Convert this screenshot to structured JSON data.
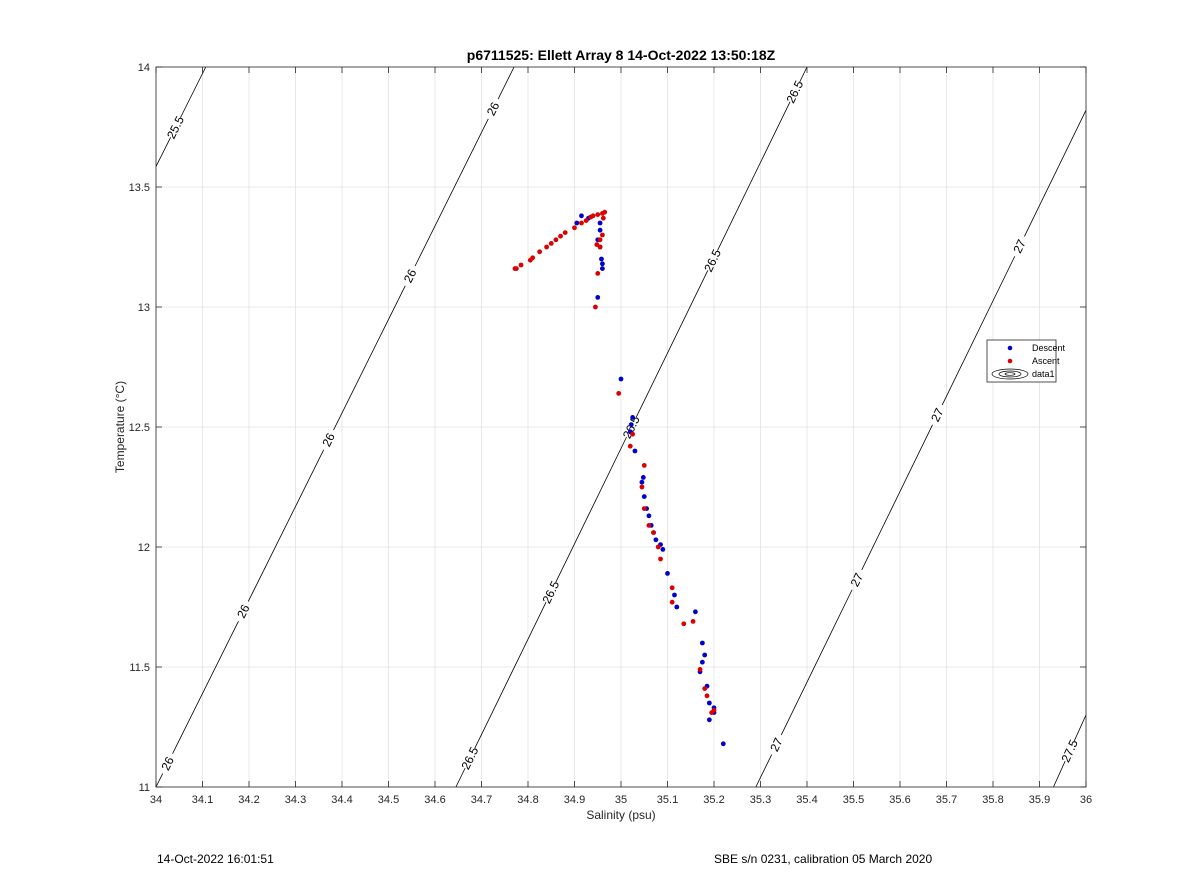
{
  "chart_data": {
    "type": "scatter",
    "title": "p6711525: Ellett Array 8 14-Oct-2022 13:50:18Z",
    "xlabel": "Salinity (psu)",
    "ylabel": "Temperature (°C)",
    "xlim": [
      34,
      36
    ],
    "ylim": [
      11,
      14
    ],
    "xticks": [
      "34",
      "34.1",
      "34.2",
      "34.3",
      "34.4",
      "34.5",
      "34.6",
      "34.7",
      "34.8",
      "34.9",
      "35",
      "35.1",
      "35.2",
      "35.3",
      "35.4",
      "35.5",
      "35.6",
      "35.7",
      "35.8",
      "35.9",
      "36"
    ],
    "yticks": [
      "11",
      "11.5",
      "12",
      "12.5",
      "13",
      "13.5",
      "14"
    ],
    "grid": true,
    "legend_position": "right",
    "legend": [
      "Descent",
      "Ascent",
      "data1"
    ],
    "series": [
      {
        "name": "Descent",
        "color": "#0000cc",
        "points": [
          [
            34.915,
            13.38
          ],
          [
            34.905,
            13.35
          ],
          [
            34.93,
            13.37
          ],
          [
            34.955,
            13.35
          ],
          [
            34.955,
            13.32
          ],
          [
            34.95,
            13.28
          ],
          [
            34.955,
            13.25
          ],
          [
            34.958,
            13.2
          ],
          [
            34.96,
            13.18
          ],
          [
            34.96,
            13.16
          ],
          [
            34.95,
            13.04
          ],
          [
            35.0,
            12.7
          ],
          [
            35.025,
            12.54
          ],
          [
            35.022,
            12.51
          ],
          [
            35.02,
            12.48
          ],
          [
            35.03,
            12.4
          ],
          [
            35.048,
            12.29
          ],
          [
            35.045,
            12.27
          ],
          [
            35.05,
            12.21
          ],
          [
            35.055,
            12.16
          ],
          [
            35.06,
            12.13
          ],
          [
            35.065,
            12.09
          ],
          [
            35.07,
            12.06
          ],
          [
            35.075,
            12.03
          ],
          [
            35.085,
            12.01
          ],
          [
            35.09,
            11.99
          ],
          [
            35.1,
            11.89
          ],
          [
            35.115,
            11.8
          ],
          [
            35.12,
            11.75
          ],
          [
            35.16,
            11.73
          ],
          [
            35.175,
            11.6
          ],
          [
            35.18,
            11.55
          ],
          [
            35.175,
            11.52
          ],
          [
            35.17,
            11.48
          ],
          [
            35.185,
            11.42
          ],
          [
            35.19,
            11.35
          ],
          [
            35.2,
            11.33
          ],
          [
            35.19,
            11.28
          ],
          [
            35.2,
            11.31
          ],
          [
            35.22,
            11.18
          ]
        ]
      },
      {
        "name": "Ascent",
        "color": "#dd0000",
        "points": [
          [
            34.772,
            13.16
          ],
          [
            34.775,
            13.16
          ],
          [
            34.785,
            13.175
          ],
          [
            34.805,
            13.195
          ],
          [
            34.81,
            13.205
          ],
          [
            34.825,
            13.23
          ],
          [
            34.84,
            13.25
          ],
          [
            34.85,
            13.265
          ],
          [
            34.86,
            13.28
          ],
          [
            34.87,
            13.295
          ],
          [
            34.88,
            13.31
          ],
          [
            34.9,
            13.33
          ],
          [
            34.915,
            13.35
          ],
          [
            34.925,
            13.36
          ],
          [
            34.935,
            13.375
          ],
          [
            34.94,
            13.38
          ],
          [
            34.95,
            13.385
          ],
          [
            34.96,
            13.39
          ],
          [
            34.965,
            13.395
          ],
          [
            34.962,
            13.37
          ],
          [
            34.96,
            13.3
          ],
          [
            34.955,
            13.28
          ],
          [
            34.948,
            13.26
          ],
          [
            34.955,
            13.25
          ],
          [
            34.95,
            13.14
          ],
          [
            34.945,
            13.0
          ],
          [
            34.995,
            12.64
          ],
          [
            35.025,
            12.47
          ],
          [
            35.02,
            12.42
          ],
          [
            35.05,
            12.34
          ],
          [
            35.045,
            12.25
          ],
          [
            35.05,
            12.16
          ],
          [
            35.06,
            12.09
          ],
          [
            35.07,
            12.06
          ],
          [
            35.08,
            12.0
          ],
          [
            35.085,
            11.95
          ],
          [
            35.11,
            11.83
          ],
          [
            35.11,
            11.77
          ],
          [
            35.135,
            11.68
          ],
          [
            35.155,
            11.69
          ],
          [
            35.17,
            11.49
          ],
          [
            35.18,
            11.41
          ],
          [
            35.185,
            11.38
          ],
          [
            35.2,
            11.32
          ],
          [
            35.195,
            11.31
          ]
        ]
      }
    ],
    "contours": [
      {
        "label": "25.5",
        "line": [
          [
            34.0,
            13.585
          ],
          [
            34.107,
            14.0
          ]
        ],
        "labels_at": [
          [
            34.04,
            13.75
          ]
        ]
      },
      {
        "label": "26",
        "line": [
          [
            34.0,
            11.0
          ],
          [
            34.77,
            14.0
          ]
        ],
        "labels_at": [
          [
            34.033,
            11.09
          ],
          [
            34.19,
            11.73
          ],
          [
            34.357,
            12.46
          ],
          [
            34.525,
            13.15
          ],
          [
            34.71,
            13.84
          ]
        ]
      },
      {
        "label": "26.5",
        "line": [
          [
            34.645,
            11.0
          ],
          [
            35.4,
            14.0
          ]
        ],
        "labels_at": [
          [
            34.675,
            11.12
          ],
          [
            34.84,
            11.82
          ],
          [
            35.0,
            12.52
          ],
          [
            35.19,
            13.2
          ],
          [
            35.37,
            13.9
          ]
        ]
      },
      {
        "label": "27",
        "line": [
          [
            35.29,
            11.0
          ],
          [
            36.0,
            13.82
          ]
        ],
        "labels_at": [
          [
            35.33,
            11.18
          ],
          [
            35.5,
            11.87
          ],
          [
            35.67,
            12.56
          ],
          [
            35.86,
            13.25
          ]
        ]
      },
      {
        "label": "27.5",
        "line": [
          [
            35.93,
            11.0
          ],
          [
            36.0,
            11.3
          ]
        ],
        "labels_at": [
          [
            35.965,
            11.15
          ]
        ]
      }
    ]
  },
  "footer": {
    "left": "14-Oct-2022 16:01:51",
    "right": "SBE s/n 0231, calibration 05 March 2020"
  }
}
